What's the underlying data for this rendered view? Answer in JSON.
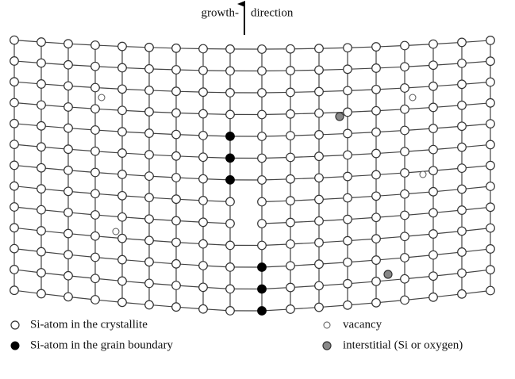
{
  "arrow_label": {
    "left": "growth-",
    "right": "direction"
  },
  "legend": [
    {
      "label": "Si-atom in the crystallite"
    },
    {
      "label": "Si-atom in the grain boundary"
    },
    {
      "label": "vacancy"
    },
    {
      "label": "interstitial (Si or oxygen)"
    }
  ]
}
